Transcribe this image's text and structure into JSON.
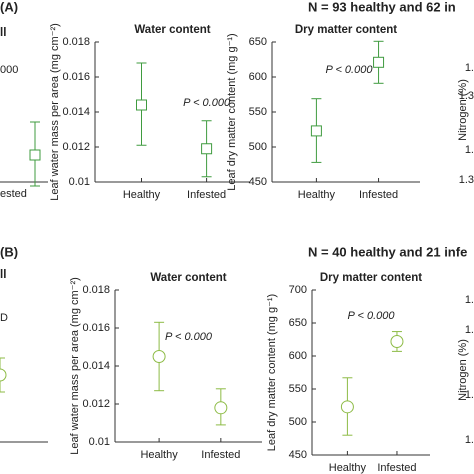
{
  "panels": [
    {
      "label": "(A)",
      "n_text": "N =  93 healthy and 62 in",
      "left_fragments": {
        "title": "ll",
        "annotation": "000",
        "category": "ested"
      },
      "right_fragments": {
        "ylabel": "Nitrogen (%)",
        "ticks": [
          "1.",
          "1.3",
          "1.",
          "1.3"
        ]
      }
    },
    {
      "label": "(B)",
      "n_text": "N =  40 healthy and 21 infe",
      "left_fragments": {
        "title": "ll",
        "annotation": "D"
      },
      "right_fragments": {
        "ylabel": "Nitrogen (%)",
        "ticks": [
          "1.",
          "1.",
          "1.",
          "1."
        ]
      }
    }
  ],
  "chart_data": [
    {
      "type": "errorbar",
      "title": "Water content",
      "ylabel": "Leaf water mass per area (mg cm⁻²)",
      "annotation": "P < 0.000",
      "categories": [
        "Healthy",
        "Infested"
      ],
      "series": [
        {
          "color": "#3f9b3f",
          "marker": "square",
          "values": [
            0.0144,
            0.0119
          ],
          "lower": [
            0.0121,
            0.0103
          ],
          "upper": [
            0.0168,
            0.0135
          ]
        }
      ],
      "ylim": [
        0.01,
        0.018
      ],
      "yticks": [
        0.01,
        0.012,
        0.014,
        0.016,
        0.018
      ]
    },
    {
      "type": "errorbar",
      "title": "Dry matter content",
      "ylabel": "Leaf dry matter content (mg g⁻¹)",
      "annotation": "P < 0.000",
      "categories": [
        "Healthy",
        "Infested"
      ],
      "series": [
        {
          "color": "#3f9b3f",
          "marker": "square",
          "values": [
            523,
            621
          ],
          "lower": [
            478,
            591
          ],
          "upper": [
            569,
            651
          ]
        }
      ],
      "ylim": [
        450,
        650
      ],
      "yticks": [
        450,
        500,
        550,
        600,
        650
      ]
    },
    {
      "type": "errorbar",
      "title": "Water content",
      "ylabel": "Leaf water mass per area (mg cm⁻²)",
      "annotation": "P < 0.000",
      "categories": [
        "Healthy",
        "Infested"
      ],
      "series": [
        {
          "color": "#8dbb45",
          "marker": "circle",
          "values": [
            0.0145,
            0.0118
          ],
          "lower": [
            0.0127,
            0.0109
          ],
          "upper": [
            0.0163,
            0.0128
          ]
        }
      ],
      "ylim": [
        0.01,
        0.018
      ],
      "yticks": [
        0.01,
        0.012,
        0.014,
        0.016,
        0.018
      ]
    },
    {
      "type": "errorbar",
      "title": "Dry matter content",
      "ylabel": "Leaf dry matter content (mg g⁻¹)",
      "annotation": "P < 0.000",
      "categories": [
        "Healthy",
        "Infested"
      ],
      "series": [
        {
          "color": "#8dbb45",
          "marker": "circle",
          "values": [
            523,
            622
          ],
          "lower": [
            480,
            607
          ],
          "upper": [
            567,
            637
          ]
        }
      ],
      "ylim": [
        450,
        700
      ],
      "yticks": [
        450,
        500,
        550,
        600,
        650,
        700
      ]
    }
  ]
}
